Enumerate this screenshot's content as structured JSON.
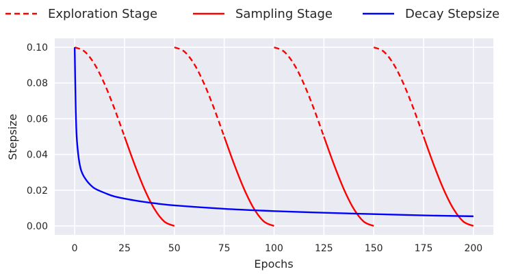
{
  "chart_data": {
    "type": "line",
    "xlabel": "Epochs",
    "ylabel": "Stepsize",
    "xlim": [
      -10,
      210
    ],
    "ylim": [
      -0.005,
      0.105
    ],
    "xticks": [
      0,
      25,
      50,
      75,
      100,
      125,
      150,
      175,
      200
    ],
    "yticks": [
      0.0,
      0.02,
      0.04,
      0.06,
      0.08,
      0.1
    ],
    "ytick_labels": [
      "0.00",
      "0.02",
      "0.04",
      "0.06",
      "0.08",
      "0.10"
    ],
    "grid": true,
    "legend_position": "top",
    "colors": {
      "red": "#ff0000",
      "blue": "#0000ff",
      "background": "#eaeaf2",
      "grid": "#ffffff"
    },
    "series": [
      {
        "name": "Exploration Stage",
        "style": "dashed",
        "color": "#ff0000",
        "segments": [
          {
            "x": [
              0,
              5,
              10,
              15,
              20,
              25
            ],
            "y": [
              0.1,
              0.0976,
              0.0905,
              0.0794,
              0.0655,
              0.05
            ]
          },
          {
            "x": [
              50,
              55,
              60,
              65,
              70,
              75
            ],
            "y": [
              0.1,
              0.0976,
              0.0905,
              0.0794,
              0.0655,
              0.05
            ]
          },
          {
            "x": [
              100,
              105,
              110,
              115,
              120,
              125
            ],
            "y": [
              0.1,
              0.0976,
              0.0905,
              0.0794,
              0.0655,
              0.05
            ]
          },
          {
            "x": [
              150,
              155,
              160,
              165,
              170,
              175
            ],
            "y": [
              0.1,
              0.0976,
              0.0905,
              0.0794,
              0.0655,
              0.05
            ]
          }
        ]
      },
      {
        "name": "Sampling Stage",
        "style": "solid",
        "color": "#ff0000",
        "segments": [
          {
            "x": [
              25,
              30,
              35,
              40,
              45,
              50
            ],
            "y": [
              0.05,
              0.0345,
              0.0206,
              0.0095,
              0.0024,
              0.0
            ]
          },
          {
            "x": [
              75,
              80,
              85,
              90,
              95,
              100
            ],
            "y": [
              0.05,
              0.0345,
              0.0206,
              0.0095,
              0.0024,
              0.0
            ]
          },
          {
            "x": [
              125,
              130,
              135,
              140,
              145,
              150
            ],
            "y": [
              0.05,
              0.0345,
              0.0206,
              0.0095,
              0.0024,
              0.0
            ]
          },
          {
            "x": [
              175,
              180,
              185,
              190,
              195,
              200
            ],
            "y": [
              0.05,
              0.0345,
              0.0206,
              0.0095,
              0.0024,
              0.0
            ]
          }
        ]
      },
      {
        "name": "Decay Stepsize",
        "style": "solid",
        "color": "#0000ff",
        "segments": [
          {
            "x": [
              0,
              0.5,
              1,
              2,
              3,
              4,
              5,
              7,
              10,
              15,
              20,
              30,
              40,
              50,
              75,
              100,
              125,
              150,
              175,
              200
            ],
            "y": [
              0.1,
              0.067,
              0.05,
              0.038,
              0.032,
              0.029,
              0.027,
              0.024,
              0.021,
              0.0185,
              0.0165,
              0.0143,
              0.0127,
              0.0115,
              0.0096,
              0.0083,
              0.0074,
              0.0066,
              0.0059,
              0.0054
            ]
          }
        ]
      }
    ]
  }
}
